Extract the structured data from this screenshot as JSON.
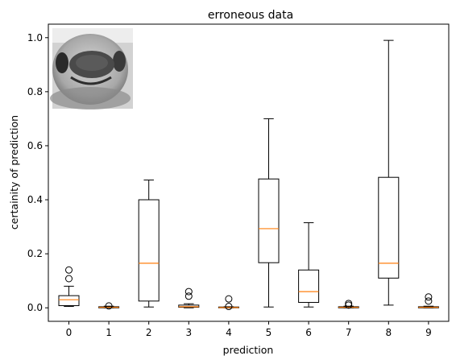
{
  "chart_data": {
    "type": "boxplot",
    "title": "erroneous data",
    "xlabel": "prediction",
    "ylabel": "certainity of prediction",
    "ylim": [
      -0.05,
      1.05
    ],
    "yticks": [
      "0.0",
      "0.2",
      "0.4",
      "0.6",
      "0.8",
      "1.0"
    ],
    "categories": [
      "0",
      "1",
      "2",
      "3",
      "4",
      "5",
      "6",
      "7",
      "8",
      "9"
    ],
    "boxes": [
      {
        "category": "0",
        "whisker_low": 0.005,
        "q1": 0.008,
        "median": 0.03,
        "q3": 0.045,
        "whisker_high": 0.08,
        "outliers": [
          0.108,
          0.14
        ]
      },
      {
        "category": "1",
        "whisker_low": 0.0,
        "q1": 0.0,
        "median": 0.002,
        "q3": 0.004,
        "whisker_high": 0.006,
        "outliers": [
          0.007
        ]
      },
      {
        "category": "2",
        "whisker_low": 0.003,
        "q1": 0.025,
        "median": 0.165,
        "q3": 0.4,
        "whisker_high": 0.473,
        "outliers": []
      },
      {
        "category": "3",
        "whisker_low": 0.0,
        "q1": 0.002,
        "median": 0.004,
        "q3": 0.01,
        "whisker_high": 0.015,
        "outliers": [
          0.043,
          0.06
        ]
      },
      {
        "category": "4",
        "whisker_low": 0.0,
        "q1": 0.0,
        "median": 0.001,
        "q3": 0.003,
        "whisker_high": 0.004,
        "outliers": [
          0.005,
          0.033
        ]
      },
      {
        "category": "5",
        "whisker_low": 0.003,
        "q1": 0.167,
        "median": 0.293,
        "q3": 0.477,
        "whisker_high": 0.7,
        "outliers": []
      },
      {
        "category": "6",
        "whisker_low": 0.003,
        "q1": 0.02,
        "median": 0.06,
        "q3": 0.14,
        "whisker_high": 0.315,
        "outliers": []
      },
      {
        "category": "7",
        "whisker_low": 0.0,
        "q1": 0.0,
        "median": 0.002,
        "q3": 0.004,
        "whisker_high": 0.006,
        "outliers": [
          0.01,
          0.016
        ]
      },
      {
        "category": "8",
        "whisker_low": 0.01,
        "q1": 0.11,
        "median": 0.165,
        "q3": 0.483,
        "whisker_high": 0.99,
        "outliers": []
      },
      {
        "category": "9",
        "whisker_low": 0.0,
        "q1": 0.0,
        "median": 0.002,
        "q3": 0.004,
        "whisker_high": 0.006,
        "outliers": [
          0.025,
          0.04
        ]
      }
    ],
    "inset_image": "grayscale face thumbnail",
    "grid": false,
    "colors": {
      "box": "#000000",
      "median": "#ff7f0e",
      "outlier": "#000000"
    }
  }
}
